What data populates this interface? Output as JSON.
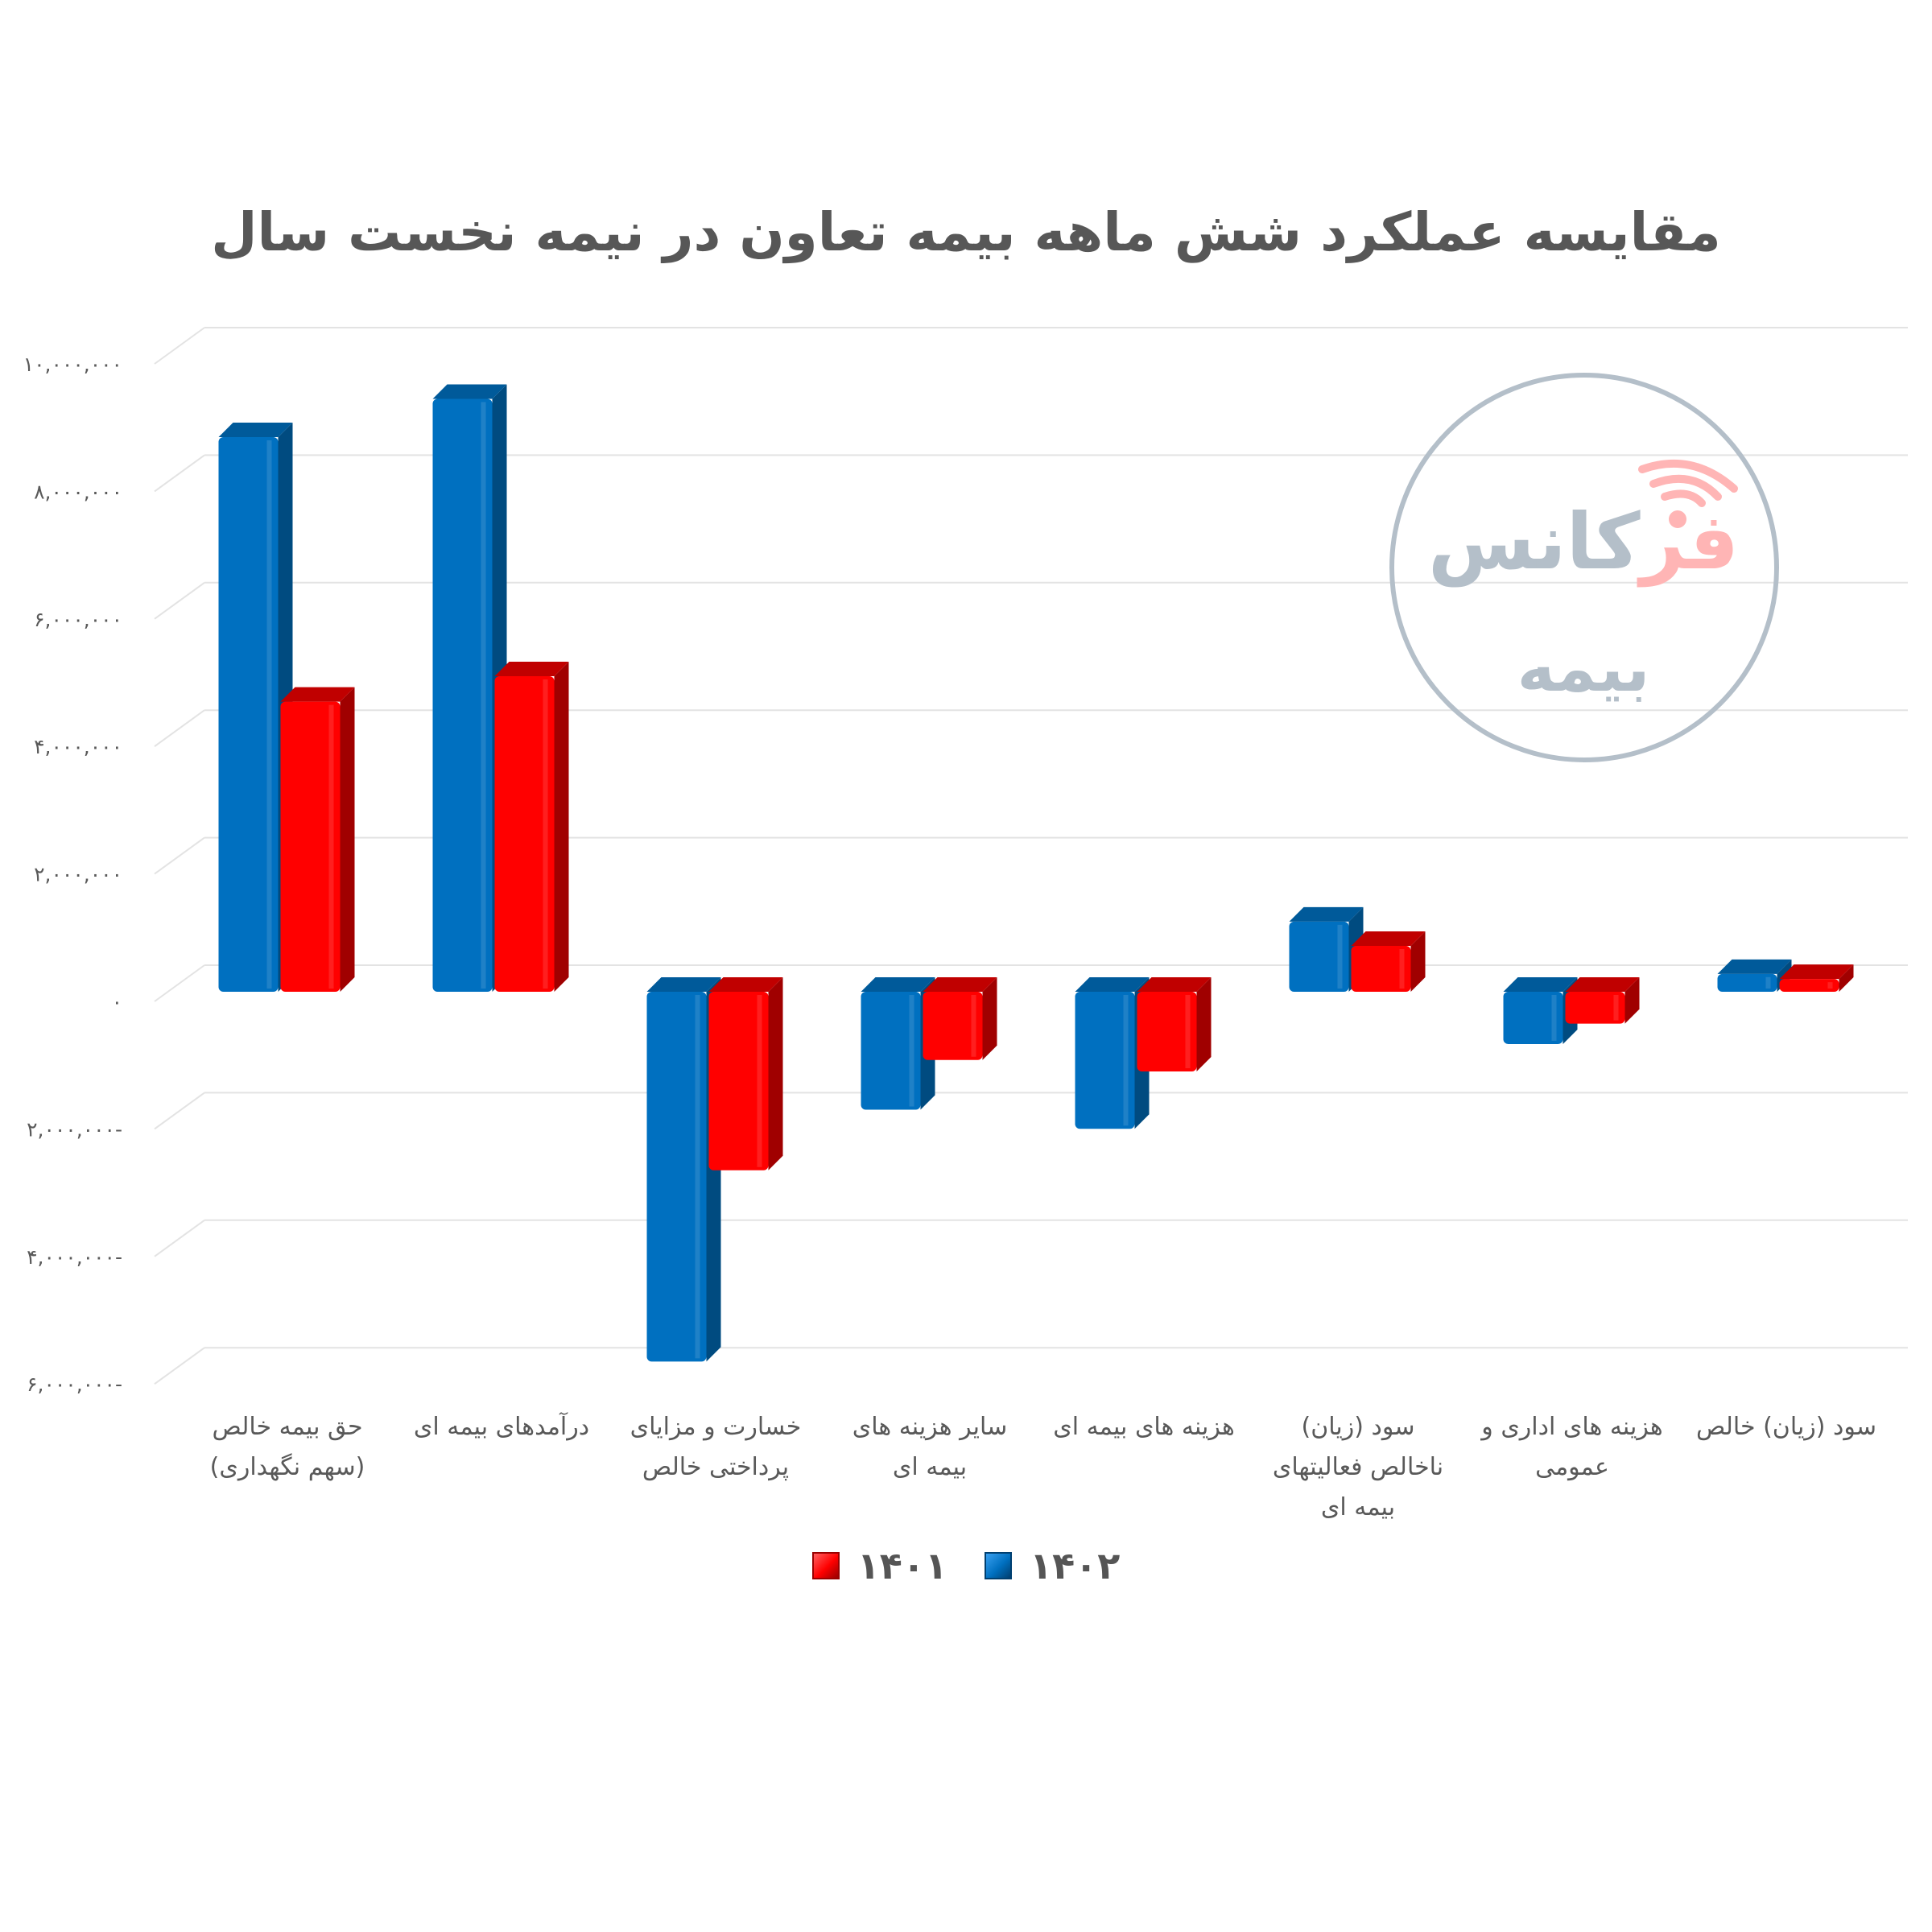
{
  "title": "مقایسه عملکرد شش ماهه بیمه تعاون در نیمه نخست سال",
  "colors": {
    "series_1402": "#0070c0",
    "series_1402_side": "#004b80",
    "series_1402_top": "#005a9a",
    "series_1401": "#ff0000",
    "series_1401_side": "#a00000",
    "series_1401_top": "#c00000",
    "gridline": "#e3e3e3",
    "text": "#595959",
    "watermark_gray": "#b4bfc9",
    "watermark_pink": "#ffb5b5"
  },
  "y_axis": {
    "ticks": [
      {
        "value": 10000000,
        "label": "۱۰,۰۰۰,۰۰۰"
      },
      {
        "value": 8000000,
        "label": "۸,۰۰۰,۰۰۰"
      },
      {
        "value": 6000000,
        "label": "۶,۰۰۰,۰۰۰"
      },
      {
        "value": 4000000,
        "label": "۴,۰۰۰,۰۰۰"
      },
      {
        "value": 2000000,
        "label": "۲,۰۰۰,۰۰۰"
      },
      {
        "value": 0,
        "label": "۰"
      },
      {
        "value": -2000000,
        "label": "۲,۰۰۰,۰۰۰-"
      },
      {
        "value": -4000000,
        "label": "۴,۰۰۰,۰۰۰-"
      },
      {
        "value": -6000000,
        "label": "۶,۰۰۰,۰۰۰-"
      }
    ]
  },
  "categories": [
    {
      "line1": "حق بیمه خالص",
      "line2": "(سهم نگهداری)",
      "line3": ""
    },
    {
      "line1": "درآمدهای بیمه ای",
      "line2": "",
      "line3": ""
    },
    {
      "line1": "خسارت و مزایای",
      "line2": "پرداختی خالص",
      "line3": ""
    },
    {
      "line1": "سایر هزینه های",
      "line2": "بیمه ای",
      "line3": ""
    },
    {
      "line1": "هزینه های بیمه ای",
      "line2": "",
      "line3": ""
    },
    {
      "line1": "سود (زیان)",
      "line2": "ناخالص فعالیتهای",
      "line3": "بیمه ای"
    },
    {
      "line1": "هزینه های اداری و",
      "line2": "عمومی",
      "line3": ""
    },
    {
      "line1": "سود (زیان) خالص",
      "line2": "",
      "line3": ""
    }
  ],
  "legend": [
    {
      "label": "۱۴۰۲",
      "series": "1402"
    },
    {
      "label": "۱۴۰۱",
      "series": "1401"
    }
  ],
  "watermark": {
    "brand_accent": "فر",
    "brand_rest": "کانس",
    "subtitle": "بیمه"
  },
  "chart_data": {
    "type": "bar",
    "title": "مقایسه عملکرد شش ماهه بیمه تعاون در نیمه نخست سال",
    "xlabel": "",
    "ylabel": "",
    "ylim": [
      -6000000,
      10000000
    ],
    "grid": true,
    "legend_position": "bottom",
    "style": "3d-clustered-column",
    "categories": [
      "حق بیمه خالص (سهم نگهداری)",
      "درآمدهای بیمه ای",
      "خسارت و مزایای پرداختی خالص",
      "سایر هزینه های بیمه ای",
      "هزینه های بیمه ای",
      "سود (زیان) ناخالص فعالیتهای بیمه ای",
      "هزینه های اداری و عمومی",
      "سود (زیان) خالص"
    ],
    "series": [
      {
        "name": "1402",
        "values": [
          8700000,
          9300000,
          -5800000,
          -1850000,
          -2150000,
          1100000,
          -820000,
          280000
        ]
      },
      {
        "name": "1401",
        "values": [
          4550000,
          4950000,
          -2800000,
          -1070000,
          -1250000,
          720000,
          -500000,
          200000
        ]
      }
    ]
  }
}
